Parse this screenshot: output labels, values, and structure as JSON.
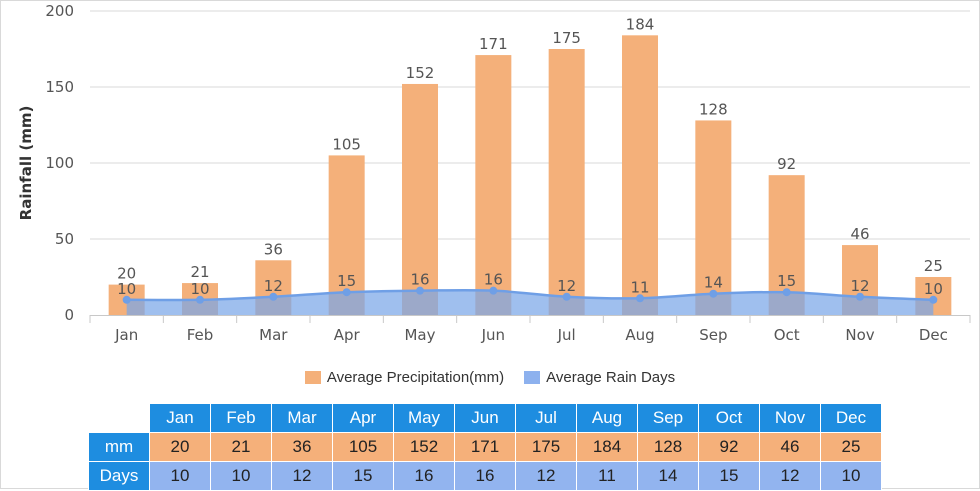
{
  "chart_data": {
    "type": "bar",
    "categories": [
      "Jan",
      "Feb",
      "Mar",
      "Apr",
      "May",
      "Jun",
      "Jul",
      "Aug",
      "Sep",
      "Oct",
      "Nov",
      "Dec"
    ],
    "series": [
      {
        "name": "Average Precipitation(mm)",
        "type": "bar",
        "values": [
          20,
          21,
          36,
          105,
          152,
          171,
          175,
          184,
          128,
          92,
          46,
          25
        ],
        "color": "#f4b07a"
      },
      {
        "name": "Average Rain Days",
        "type": "area",
        "values": [
          10,
          10,
          12,
          15,
          16,
          16,
          12,
          11,
          14,
          15,
          12,
          10
        ],
        "color": "#7aa6e8"
      }
    ],
    "ylabel": "Rainfall (mm)",
    "ylim": [
      0,
      200
    ],
    "yticks": [
      0,
      50,
      100,
      150,
      200
    ],
    "grid": true,
    "legend": "bottom"
  },
  "legend": {
    "precip_label": "Average Precipitation(mm)",
    "days_label": "Average Rain Days",
    "precip_color": "#f4b07a",
    "days_color": "#8db1ee"
  },
  "table": {
    "months": [
      "Jan",
      "Feb",
      "Mar",
      "Apr",
      "May",
      "Jun",
      "Jul",
      "Aug",
      "Sep",
      "Oct",
      "Nov",
      "Dec"
    ],
    "mm_label": "mm",
    "days_label": "Days",
    "mm": [
      "20",
      "21",
      "36",
      "105",
      "152",
      "171",
      "175",
      "184",
      "128",
      "92",
      "46",
      "25"
    ],
    "days": [
      "10",
      "10",
      "12",
      "15",
      "16",
      "16",
      "12",
      "11",
      "14",
      "15",
      "12",
      "10"
    ]
  }
}
